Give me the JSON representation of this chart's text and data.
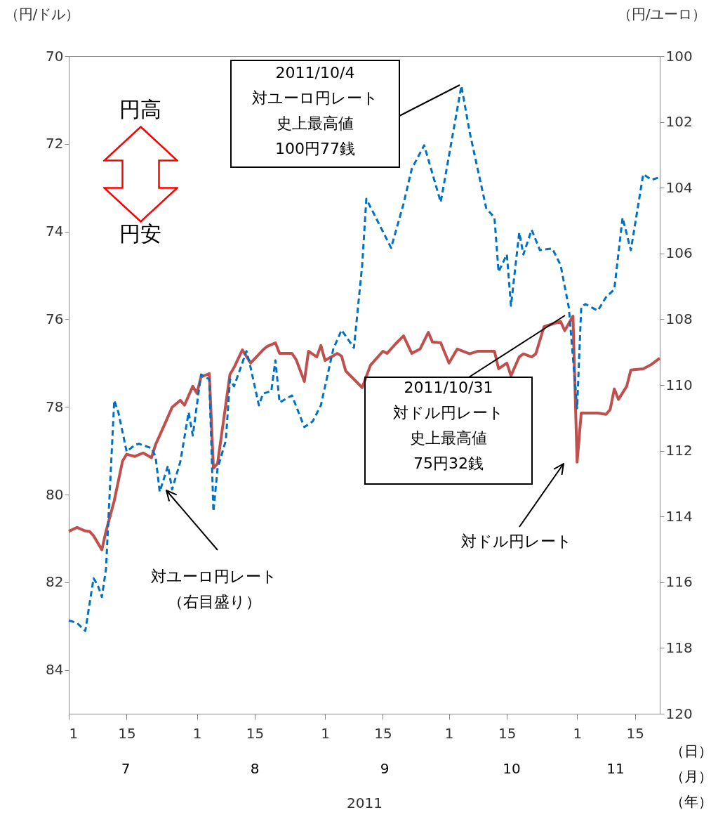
{
  "chart_data": {
    "type": "line",
    "xlabel": "2011",
    "ylabel": "（円/ドル）",
    "y2label": "（円/ユーロ）",
    "xlim": [
      "2011-07-01",
      "2011-11-21"
    ],
    "xticks": [
      {
        "value": "2011-07-01",
        "label": "1"
      },
      {
        "value": "2011-07-15",
        "label": "15"
      },
      {
        "value": "2011-08-01",
        "label": "1"
      },
      {
        "value": "2011-08-15",
        "label": "15"
      },
      {
        "value": "2011-09-01",
        "label": "1"
      },
      {
        "value": "2011-09-15",
        "label": "15"
      },
      {
        "value": "2011-10-01",
        "label": "1"
      },
      {
        "value": "2011-10-15",
        "label": "15"
      },
      {
        "value": "2011-11-01",
        "label": "1"
      },
      {
        "value": "2011-11-15",
        "label": "15"
      }
    ],
    "ylim": [
      85,
      70
    ],
    "yticks": [
      70,
      72,
      74,
      76,
      78,
      80,
      82,
      84
    ],
    "y2lim": [
      120,
      100
    ],
    "y2ticks": [
      100,
      102,
      104,
      106,
      108,
      110,
      112,
      114,
      116,
      118,
      120
    ],
    "series": [
      {
        "color": "#c0504d",
        "line_style": "solid",
        "x": [
          "2011-07-01",
          "2011-07-03",
          "2011-07-05",
          "2011-07-06",
          "2011-07-07",
          "2011-07-09",
          "2011-07-10",
          "2011-07-12",
          "2011-07-14",
          "2011-07-15",
          "2011-07-17",
          "2011-07-19",
          "2011-07-21",
          "2011-07-22",
          "2011-07-24",
          "2011-07-26",
          "2011-07-28",
          "2011-07-29",
          "2011-07-31",
          "2011-08-01",
          "2011-08-02",
          "2011-08-04",
          "2011-08-05",
          "2011-08-06",
          "2011-08-09",
          "2011-08-10",
          "2011-08-12",
          "2011-08-14",
          "2011-08-17",
          "2011-08-18",
          "2011-08-20",
          "2011-08-21",
          "2011-08-24",
          "2011-08-25",
          "2011-08-27",
          "2011-08-28",
          "2011-08-30",
          "2011-08-31",
          "2011-09-01",
          "2011-09-04",
          "2011-09-05",
          "2011-09-06",
          "2011-09-10",
          "2011-09-12",
          "2011-09-15",
          "2011-09-16",
          "2011-09-18",
          "2011-09-20",
          "2011-09-22",
          "2011-09-24",
          "2011-09-26",
          "2011-09-27",
          "2011-09-29",
          "2011-10-01",
          "2011-10-03",
          "2011-10-06",
          "2011-10-08",
          "2011-10-12",
          "2011-10-13",
          "2011-10-15",
          "2011-10-16",
          "2011-10-18",
          "2011-10-19",
          "2011-10-21",
          "2011-10-22",
          "2011-10-24",
          "2011-10-28",
          "2011-10-29",
          "2011-10-31",
          "2011-11-01",
          "2011-11-02",
          "2011-11-06",
          "2011-11-08",
          "2011-11-09",
          "2011-11-10",
          "2011-11-11",
          "2011-11-13",
          "2011-11-14",
          "2011-11-17",
          "2011-11-19",
          "2011-11-21"
        ],
        "values": [
          80.84,
          80.75,
          80.83,
          80.84,
          80.94,
          81.26,
          80.84,
          80.14,
          79.24,
          79.08,
          79.13,
          79.05,
          79.16,
          78.86,
          78.44,
          78.01,
          77.85,
          77.96,
          77.53,
          77.69,
          77.32,
          77.24,
          79.4,
          79.29,
          77.26,
          77.1,
          76.7,
          77.0,
          76.7,
          76.62,
          76.54,
          76.78,
          76.78,
          76.92,
          77.42,
          76.73,
          76.86,
          76.6,
          76.94,
          76.78,
          76.84,
          77.18,
          77.56,
          77.05,
          76.73,
          76.78,
          76.57,
          76.38,
          76.78,
          76.68,
          76.3,
          76.52,
          76.54,
          77.0,
          76.68,
          76.79,
          76.73,
          76.73,
          77.13,
          77.0,
          77.29,
          76.86,
          76.79,
          76.86,
          76.79,
          76.17,
          76.05,
          76.26,
          75.93,
          79.26,
          78.14,
          78.14,
          78.17,
          78.06,
          77.59,
          77.83,
          77.53,
          77.16,
          77.13,
          77.03,
          76.89
        ]
      },
      {
        "color": "#0070c0",
        "line_style": "dashed",
        "axis": "y2",
        "x": [
          "2011-07-01",
          "2011-07-03",
          "2011-07-05",
          "2011-07-07",
          "2011-07-08",
          "2011-07-09",
          "2011-07-10",
          "2011-07-12",
          "2011-07-13",
          "2011-07-15",
          "2011-07-17",
          "2011-07-18",
          "2011-07-21",
          "2011-07-22",
          "2011-07-23",
          "2011-07-25",
          "2011-07-26",
          "2011-07-28",
          "2011-07-30",
          "2011-07-31",
          "2011-08-02",
          "2011-08-04",
          "2011-08-05",
          "2011-08-06",
          "2011-08-08",
          "2011-08-09",
          "2011-08-10",
          "2011-08-13",
          "2011-08-14",
          "2011-08-16",
          "2011-08-17",
          "2011-08-19",
          "2011-08-20",
          "2011-08-21",
          "2011-08-24",
          "2011-08-27",
          "2011-08-29",
          "2011-08-31",
          "2011-09-03",
          "2011-09-05",
          "2011-09-08",
          "2011-09-10",
          "2011-09-11",
          "2011-09-17",
          "2011-09-20",
          "2011-09-22",
          "2011-09-25",
          "2011-09-29",
          "2011-10-04",
          "2011-10-06",
          "2011-10-10",
          "2011-10-12",
          "2011-10-13",
          "2011-10-15",
          "2011-10-16",
          "2011-10-18",
          "2011-10-19",
          "2011-10-21",
          "2011-10-23",
          "2011-10-26",
          "2011-10-28",
          "2011-10-30",
          "2011-11-01",
          "2011-11-02",
          "2011-11-03",
          "2011-11-06",
          "2011-11-08",
          "2011-11-10",
          "2011-11-12",
          "2011-11-14",
          "2011-11-17",
          "2011-11-19",
          "2011-11-21"
        ],
        "values": [
          117.16,
          117.24,
          117.48,
          115.88,
          116.09,
          116.45,
          115.6,
          110.47,
          110.83,
          112.03,
          111.82,
          111.79,
          111.92,
          112.18,
          113.25,
          112.46,
          113.18,
          112.33,
          110.83,
          111.54,
          109.68,
          109.83,
          113.85,
          112.54,
          111.69,
          109.83,
          110.04,
          108.97,
          109.47,
          110.62,
          110.26,
          110.19,
          109.25,
          110.53,
          110.32,
          111.28,
          111.11,
          110.62,
          108.91,
          108.33,
          108.87,
          106.35,
          104.34,
          105.83,
          104.49,
          103.42,
          102.71,
          104.44,
          100.9,
          102.31,
          104.62,
          104.91,
          106.56,
          106.03,
          107.59,
          105.36,
          106.03,
          105.28,
          105.9,
          105.85,
          106.35,
          107.65,
          110.71,
          107.63,
          107.54,
          107.74,
          107.33,
          107.09,
          104.91,
          105.9,
          103.59,
          103.76,
          103.68
        ]
      }
    ],
    "annotations": [
      "2011/10/4",
      "対ユーロ円レート",
      "史上最高値",
      "100円77銭",
      "2011/10/31",
      "対ドル円レート",
      "史上最高値",
      "75円32銭",
      "対ユーロ円レート",
      "（右目盛り）",
      "対ドル円レート",
      "円高",
      "円安",
      "（日）",
      "（月）",
      "（年）",
      "7",
      "8",
      "9",
      "10",
      "11"
    ]
  }
}
